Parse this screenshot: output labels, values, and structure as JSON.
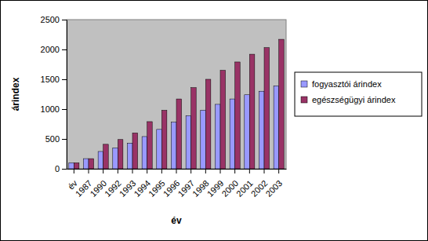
{
  "chart_data": {
    "type": "bar",
    "x_label": "év",
    "y_label": "árindex",
    "categories": [
      "év",
      "1987",
      "1990",
      "1992",
      "1993",
      "1994",
      "1995",
      "1996",
      "1997",
      "1998",
      "1999",
      "2000",
      "2001",
      "2002",
      "2003"
    ],
    "series": [
      {
        "name": "fogyasztói árindex",
        "color": "#9999ff",
        "values": [
          100,
          170,
          290,
          350,
          430,
          540,
          660,
          780,
          890,
          980,
          1080,
          1170,
          1240,
          1300,
          1390
        ]
      },
      {
        "name": "egészségügyi árindex",
        "color": "#993366",
        "values": [
          100,
          170,
          410,
          490,
          600,
          790,
          980,
          1170,
          1360,
          1500,
          1650,
          1790,
          1920,
          2030,
          2170
        ]
      }
    ],
    "ylim": [
      0,
      2500
    ],
    "yticks": [
      0,
      500,
      1000,
      1500,
      2000,
      2500
    ],
    "grid": false,
    "legend": "right"
  }
}
